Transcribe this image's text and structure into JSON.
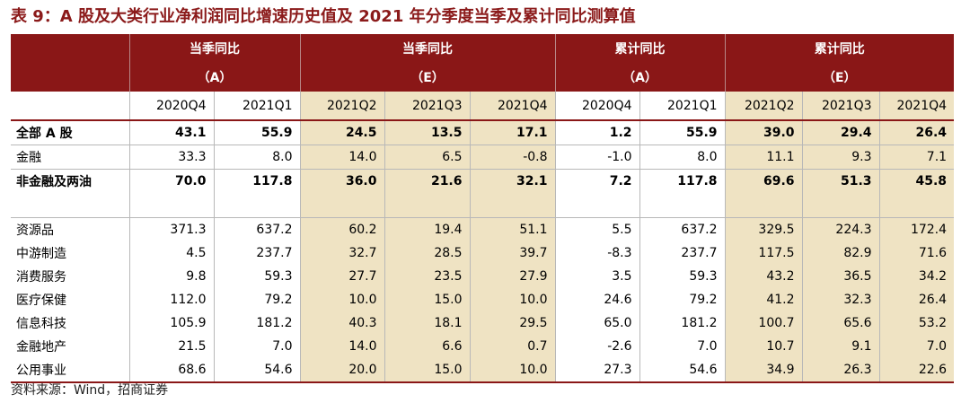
{
  "title": "表 9：A 股及大类行业净利润同比增速历史值及 2021 年分季度当季及累计同比测算值",
  "header": {
    "groups": [
      {
        "line1": "当季同比",
        "line2": "（A）"
      },
      {
        "line1": "当季同比",
        "line2": "（E）"
      },
      {
        "line1": "累计同比",
        "line2": "（A）"
      },
      {
        "line1": "累计同比",
        "line2": "（E）"
      }
    ],
    "quarters": [
      "2020Q4",
      "2021Q1",
      "2021Q2",
      "2021Q3",
      "2021Q4",
      "2020Q4",
      "2021Q1",
      "2021Q2",
      "2021Q3",
      "2021Q4"
    ]
  },
  "rows": [
    {
      "label": "全部 A 股",
      "values": [
        "43.1",
        "55.9",
        "24.5",
        "13.5",
        "17.1",
        "1.2",
        "55.9",
        "39.0",
        "29.4",
        "26.4"
      ]
    },
    {
      "label": "金融",
      "values": [
        "33.3",
        "8.0",
        "14.0",
        "6.5",
        "-0.8",
        "-1.0",
        "8.0",
        "11.1",
        "9.3",
        "7.1"
      ]
    },
    {
      "label": "非金融及两油",
      "values": [
        "70.0",
        "117.8",
        "36.0",
        "21.6",
        "32.1",
        "7.2",
        "117.8",
        "69.6",
        "51.3",
        "45.8"
      ]
    },
    {
      "label": "资源品",
      "values": [
        "371.3",
        "637.2",
        "60.2",
        "19.4",
        "51.1",
        "5.5",
        "637.2",
        "329.5",
        "224.3",
        "172.4"
      ]
    },
    {
      "label": "中游制造",
      "values": [
        "4.5",
        "237.7",
        "32.7",
        "28.5",
        "39.7",
        "-8.3",
        "237.7",
        "117.5",
        "82.9",
        "71.6"
      ]
    },
    {
      "label": "消费服务",
      "values": [
        "9.8",
        "59.3",
        "27.7",
        "23.5",
        "27.9",
        "3.5",
        "59.3",
        "43.2",
        "36.5",
        "34.2"
      ]
    },
    {
      "label": "医疗保健",
      "values": [
        "112.0",
        "79.2",
        "10.0",
        "15.0",
        "10.0",
        "24.6",
        "79.2",
        "41.2",
        "32.3",
        "26.4"
      ]
    },
    {
      "label": "信息科技",
      "values": [
        "105.9",
        "181.2",
        "40.3",
        "18.1",
        "29.5",
        "65.0",
        "181.2",
        "100.7",
        "65.6",
        "53.2"
      ]
    },
    {
      "label": "金融地产",
      "values": [
        "21.5",
        "7.0",
        "14.0",
        "6.6",
        "0.7",
        "-2.6",
        "7.0",
        "10.7",
        "9.1",
        "7.0"
      ]
    },
    {
      "label": "公用事业",
      "values": [
        "68.6",
        "54.6",
        "20.0",
        "15.0",
        "10.0",
        "27.3",
        "54.6",
        "34.9",
        "26.3",
        "22.6"
      ]
    }
  ],
  "source": "资料来源：Wind，招商证券"
}
